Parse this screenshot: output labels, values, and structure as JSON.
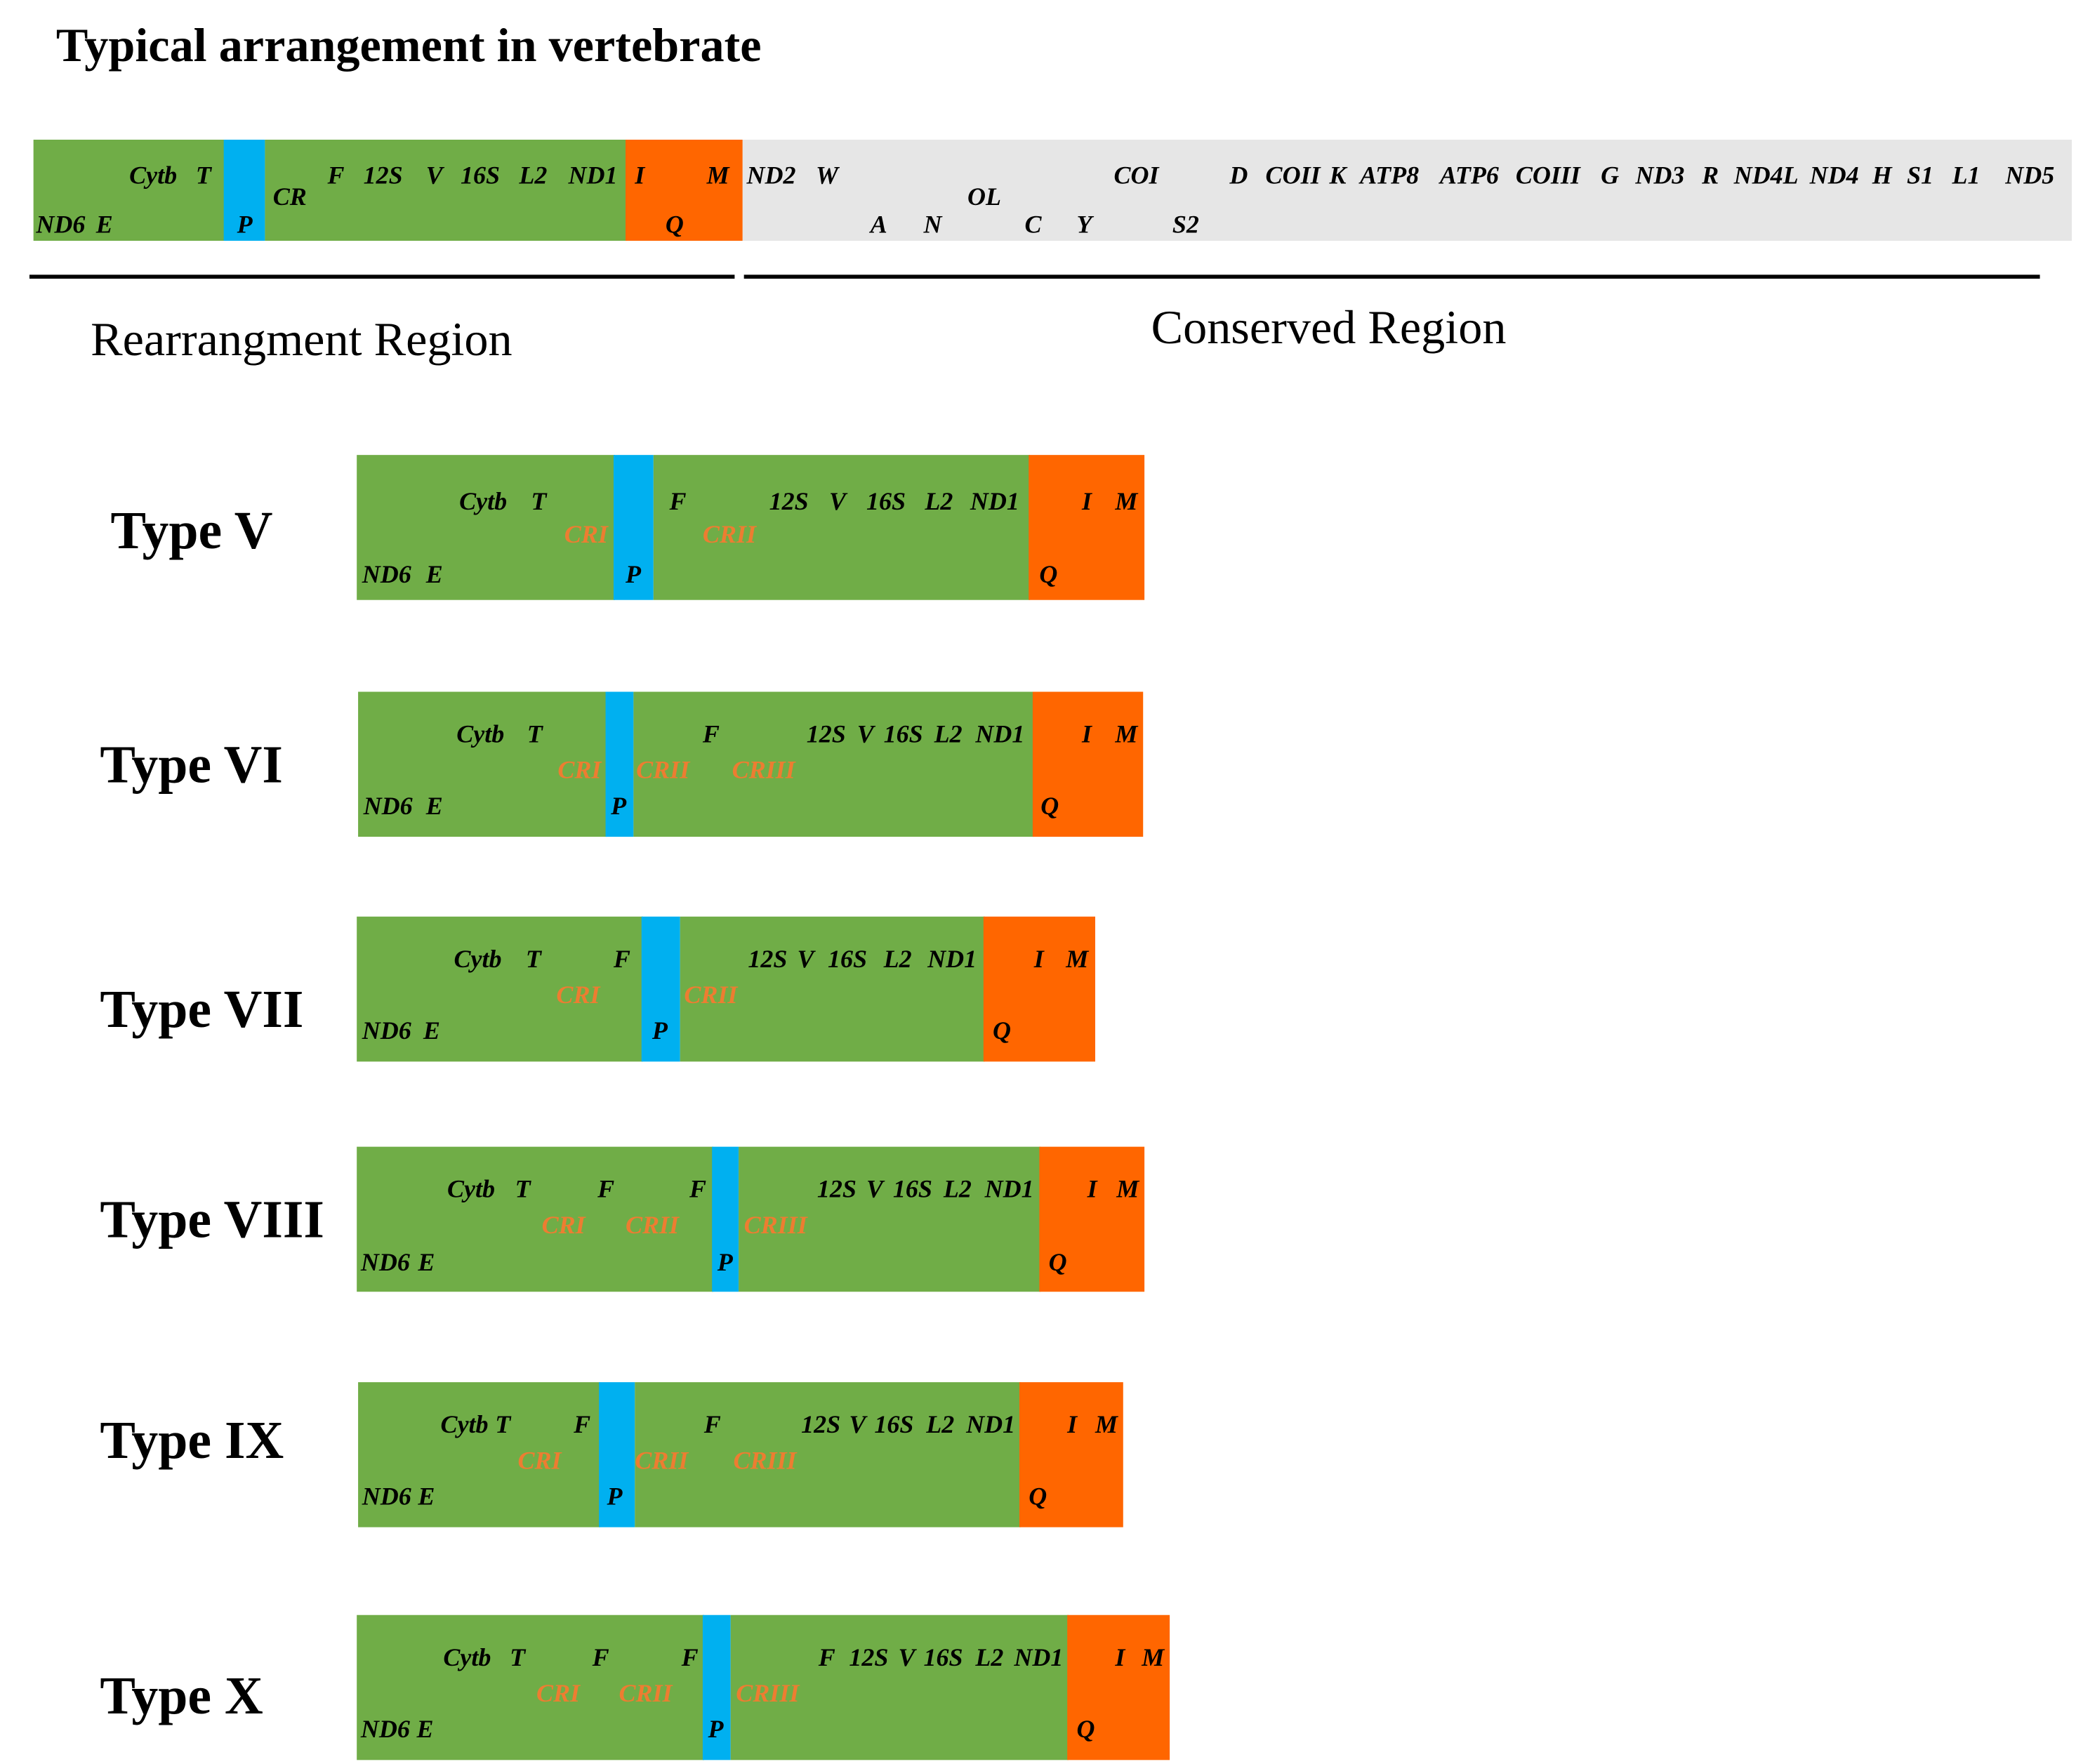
{
  "title": "Typical arrangement in vertebrate",
  "regions": {
    "rearrangement": "Rearrangment Region",
    "conserved": "Conserved Region"
  },
  "colors": {
    "green": "#70AD47",
    "blue": "#00B0F0",
    "orange": "#FF6600",
    "gray": "#E6E6E6",
    "cr_text": "#ED7D31",
    "text": "#000000"
  },
  "typical": {
    "segments": [
      {
        "name": "green-left",
        "color": "green"
      },
      {
        "name": "blue-p",
        "color": "blue"
      },
      {
        "name": "green-right",
        "color": "green"
      },
      {
        "name": "orange",
        "color": "orange"
      },
      {
        "name": "gray-conserved",
        "color": "gray"
      }
    ],
    "labels": [
      "Cytb",
      "T",
      "ND6",
      "E",
      "P",
      "CR",
      "F",
      "12S",
      "V",
      "16S",
      "L2",
      "ND1",
      "I",
      "M",
      "Q",
      "ND2",
      "W",
      "A",
      "N",
      "OL",
      "C",
      "Y",
      "COI",
      "S2",
      "D",
      "COII",
      "K",
      "ATP8",
      "ATP6",
      "COIII",
      "G",
      "ND3",
      "R",
      "ND4L",
      "ND4",
      "H",
      "S1",
      "L1",
      "ND5"
    ]
  },
  "types": [
    {
      "name": "Type V",
      "labels": [
        "Cytb",
        "T",
        "CRI",
        "F",
        "CRII",
        "12S",
        "V",
        "16S",
        "L2",
        "ND1",
        "I",
        "M",
        "ND6",
        "E",
        "P",
        "Q"
      ]
    },
    {
      "name": "Type VI",
      "labels": [
        "Cytb",
        "T",
        "CRI",
        "CRII",
        "F",
        "CRIII",
        "12S",
        "V",
        "16S",
        "L2",
        "ND1",
        "I",
        "M",
        "ND6",
        "E",
        "P",
        "Q"
      ]
    },
    {
      "name": "Type VII",
      "labels": [
        "Cytb",
        "T",
        "F",
        "CRI",
        "CRII",
        "12S",
        "V",
        "16S",
        "L2",
        "ND1",
        "I",
        "M",
        "ND6",
        "E",
        "P",
        "Q"
      ]
    },
    {
      "name": "Type VIII",
      "labels": [
        "Cytb",
        "T",
        "F",
        "F",
        "CRI",
        "CRII",
        "CRIII",
        "12S",
        "V",
        "16S",
        "L2",
        "ND1",
        "I",
        "M",
        "ND6",
        "E",
        "P",
        "Q"
      ]
    },
    {
      "name": "Type IX",
      "labels": [
        "Cytb",
        "T",
        "F",
        "CRI",
        "F",
        "CRII",
        "CRIII",
        "12S",
        "V",
        "16S",
        "L2",
        "ND1",
        "I",
        "M",
        "ND6",
        "E",
        "P",
        "Q"
      ]
    },
    {
      "name": "Type X",
      "labels": [
        "Cytb",
        "T",
        "F",
        "F",
        "CRI",
        "CRII",
        "CRIII",
        "F",
        "12S",
        "V",
        "16S",
        "L2",
        "ND1",
        "I",
        "M",
        "ND6",
        "E",
        "P",
        "Q"
      ]
    }
  ]
}
